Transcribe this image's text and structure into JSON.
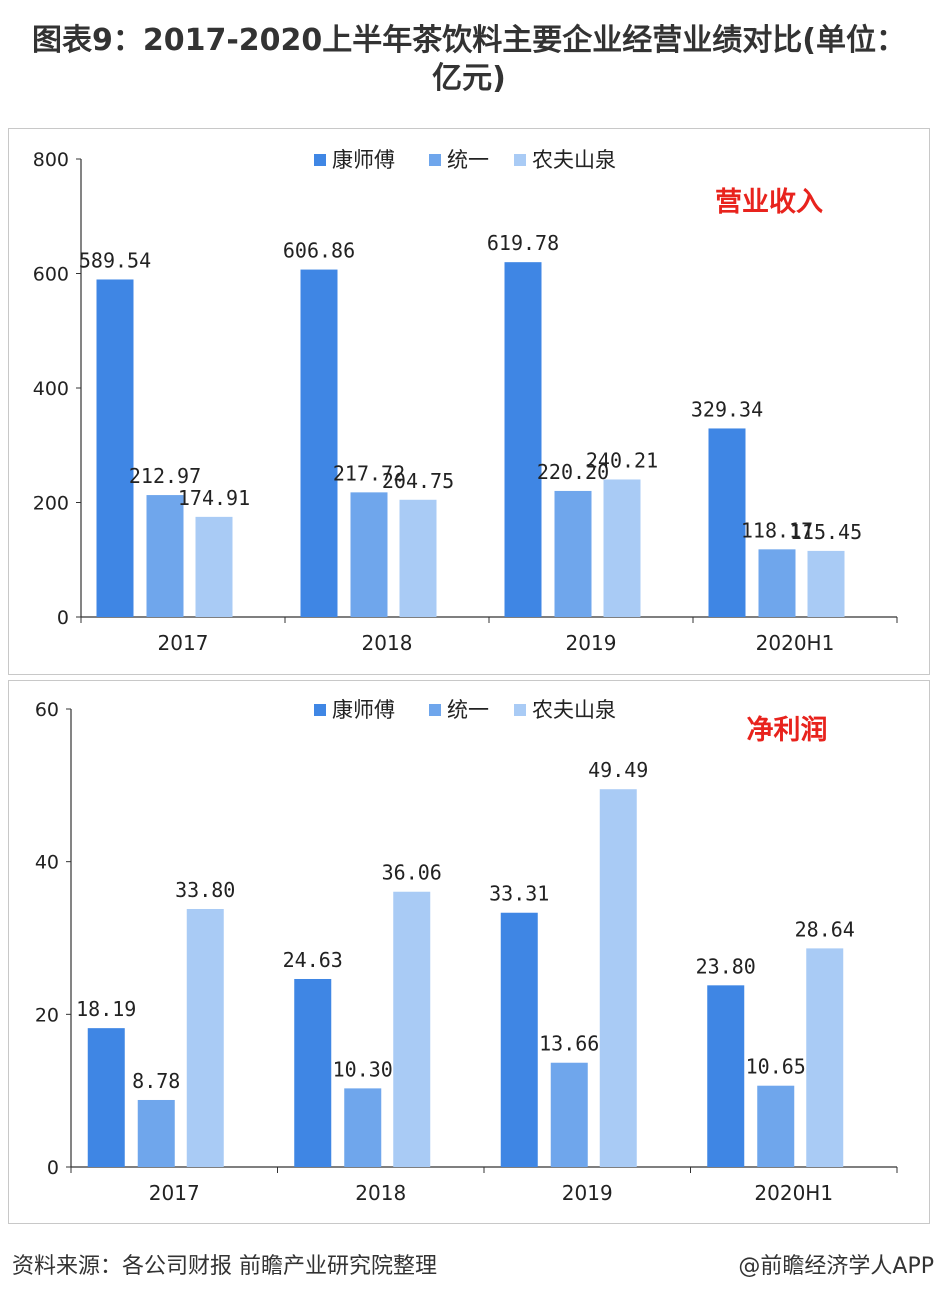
{
  "title": "图表9：2017-2020上半年茶饮料主要企业经营业绩对比(单位：亿元)",
  "source": "资料来源：各公司财报 前瞻产业研究院整理",
  "credit": "@前瞻经济学人APP",
  "colors": {
    "kangshifu": "#3f86e4",
    "tongyi": "#6fa6ec",
    "nongfu": "#a9cbf5",
    "annotation": "#e8231d"
  },
  "chart_data": [
    {
      "type": "bar",
      "annotation": "营业收入",
      "categories": [
        "2017",
        "2018",
        "2019",
        "2020H1"
      ],
      "ylim": [
        0,
        800
      ],
      "yticks": [
        0,
        200,
        400,
        600,
        800
      ],
      "legend_position": "top-center",
      "series": [
        {
          "name": "康师傅",
          "values": [
            589.54,
            606.86,
            619.78,
            329.34
          ],
          "labels": [
            "589.54",
            "606.86",
            "619.78",
            "329.34"
          ]
        },
        {
          "name": "统一",
          "values": [
            212.97,
            217.72,
            220.2,
            118.17
          ],
          "labels": [
            "212.97",
            "217.72",
            "220.20",
            "118.17"
          ]
        },
        {
          "name": "农夫山泉",
          "values": [
            174.91,
            204.75,
            240.21,
            115.45
          ],
          "labels": [
            "174.91",
            "204.75",
            "240.21",
            "115.45"
          ]
        }
      ]
    },
    {
      "type": "bar",
      "annotation": "净利润",
      "categories": [
        "2017",
        "2018",
        "2019",
        "2020H1"
      ],
      "ylim": [
        0,
        60
      ],
      "yticks": [
        0,
        20,
        40,
        60
      ],
      "legend_position": "top-center",
      "series": [
        {
          "name": "康师傅",
          "values": [
            18.19,
            24.63,
            33.31,
            23.8
          ],
          "labels": [
            "18.19",
            "24.63",
            "33.31",
            "23.80"
          ]
        },
        {
          "name": "统一",
          "values": [
            8.78,
            10.3,
            13.66,
            10.65
          ],
          "labels": [
            "8.78",
            "10.30",
            "13.66",
            "10.65"
          ]
        },
        {
          "name": "农夫山泉",
          "values": [
            33.8,
            36.06,
            49.49,
            28.64
          ],
          "labels": [
            "33.80",
            "36.06",
            "49.49",
            "28.64"
          ]
        }
      ]
    }
  ]
}
